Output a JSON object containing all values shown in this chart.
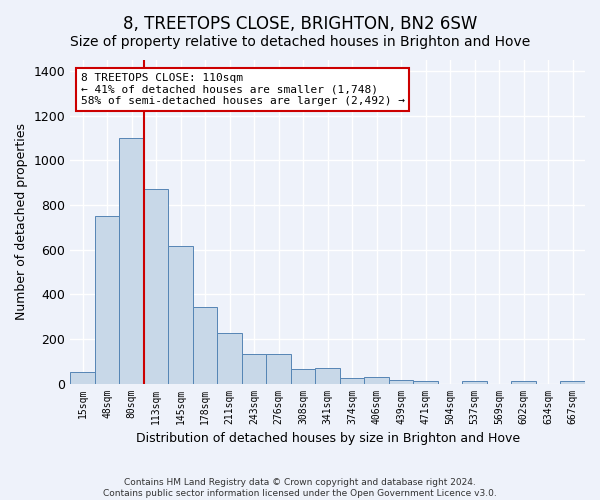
{
  "title": "8, TREETOPS CLOSE, BRIGHTON, BN2 6SW",
  "subtitle": "Size of property relative to detached houses in Brighton and Hove",
  "xlabel": "Distribution of detached houses by size in Brighton and Hove",
  "ylabel": "Number of detached properties",
  "footnote1": "Contains HM Land Registry data © Crown copyright and database right 2024.",
  "footnote2": "Contains public sector information licensed under the Open Government Licence v3.0.",
  "bin_labels": [
    "15sqm",
    "48sqm",
    "80sqm",
    "113sqm",
    "145sqm",
    "178sqm",
    "211sqm",
    "243sqm",
    "276sqm",
    "308sqm",
    "341sqm",
    "374sqm",
    "406sqm",
    "439sqm",
    "471sqm",
    "504sqm",
    "537sqm",
    "569sqm",
    "602sqm",
    "634sqm",
    "667sqm"
  ],
  "bar_heights": [
    50,
    750,
    1100,
    870,
    615,
    345,
    228,
    133,
    133,
    63,
    68,
    25,
    28,
    18,
    13,
    0,
    10,
    0,
    10,
    0,
    10
  ],
  "bar_color": "#c8d8e8",
  "bar_edge_color": "#5585b5",
  "vline_x_index": 2.5,
  "vline_color": "#cc0000",
  "annotation_line1": "8 TREETOPS CLOSE: 110sqm",
  "annotation_line2": "← 41% of detached houses are smaller (1,748)",
  "annotation_line3": "58% of semi-detached houses are larger (2,492) →",
  "annotation_box_color": "#ffffff",
  "annotation_box_edge": "#cc0000",
  "ylim": [
    0,
    1450
  ],
  "background_color": "#eef2fa",
  "grid_color": "#ffffff",
  "title_fontsize": 12,
  "subtitle_fontsize": 10,
  "ylabel_fontsize": 9,
  "xlabel_fontsize": 9
}
